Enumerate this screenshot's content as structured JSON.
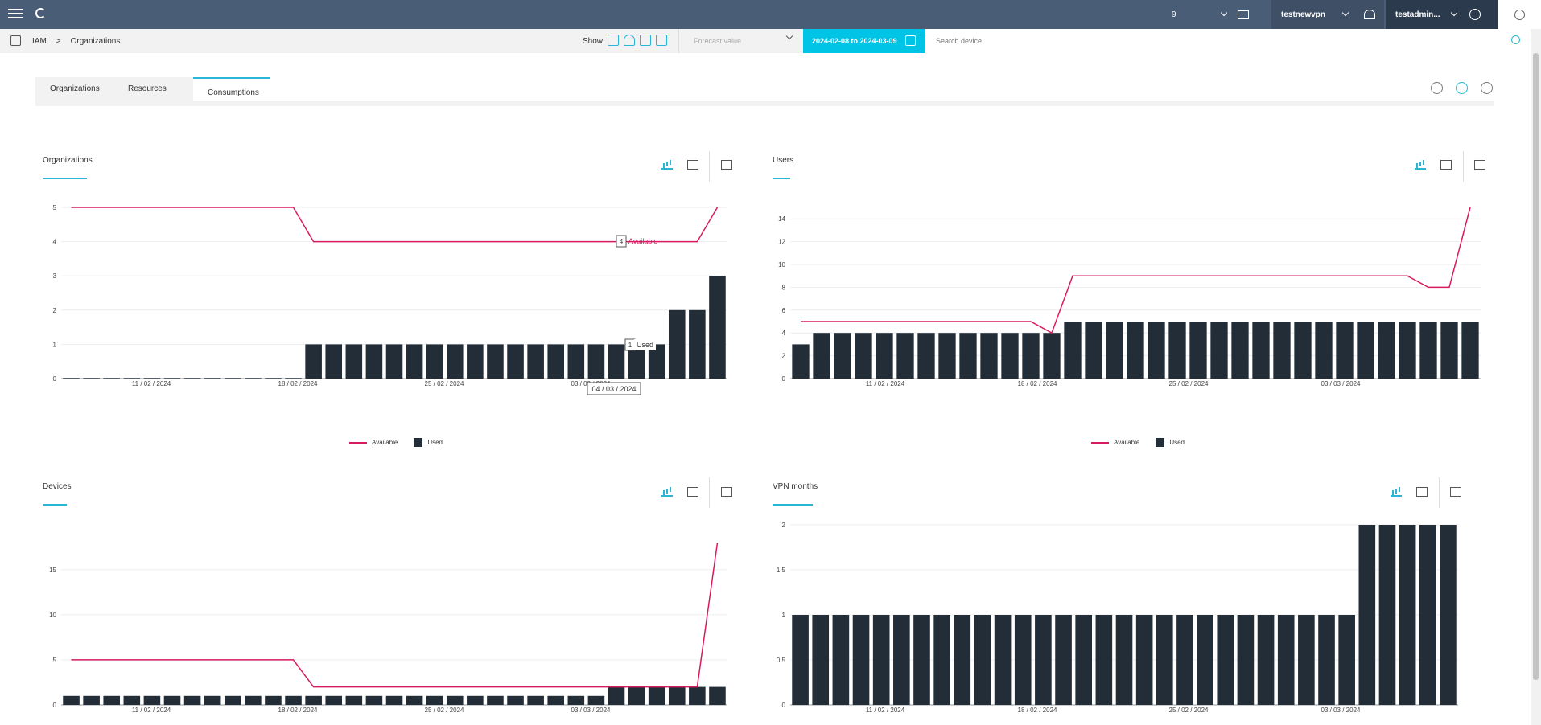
{
  "topbar": {
    "count": "9",
    "vpn": "testnewvpn",
    "user": "testadmin..."
  },
  "breadcrumb": {
    "home": "IAM",
    "sep": ">",
    "current": "Organizations"
  },
  "show_label": "Show:",
  "forecast_placeholder": "Forecast value",
  "date_range": "2024-02-08 to 2024-03-09",
  "search_placeholder": "Search device",
  "tabs": [
    "Organizations",
    "Resources",
    "Consumptions"
  ],
  "panels": {
    "organizations": "Organizations",
    "users": "Users",
    "devices": "Devices",
    "vpn": "VPN months"
  },
  "legend": {
    "available": "Available",
    "used": "Used"
  },
  "tooltip": {
    "date": "04 / 03 / 2024",
    "available_value": "4",
    "available_label": "Available",
    "used_value": "1",
    "used_label": "Used"
  },
  "chart_data": [
    {
      "type": "bar",
      "title": "Organizations",
      "x_ticks": [
        "11 / 02 / 2024",
        "18 / 02 / 2024",
        "25 / 02 / 2024",
        "03 / 03 / 2024"
      ],
      "y_ticks": [
        0,
        1,
        2,
        3,
        4,
        5
      ],
      "ylim": [
        0,
        5
      ],
      "series": [
        {
          "name": "Used",
          "kind": "bar",
          "values": [
            0,
            0,
            0,
            0,
            0,
            0,
            0,
            0,
            0,
            0,
            0,
            0,
            1,
            1,
            1,
            1,
            1,
            1,
            1,
            1,
            1,
            1,
            1,
            1,
            1,
            1,
            1,
            1,
            1,
            1,
            2,
            2,
            3
          ]
        },
        {
          "name": "Available",
          "kind": "line",
          "values": [
            5,
            5,
            5,
            5,
            5,
            5,
            5,
            5,
            5,
            5,
            5,
            5,
            4,
            4,
            4,
            4,
            4,
            4,
            4,
            4,
            4,
            4,
            4,
            4,
            4,
            4,
            4,
            4,
            4,
            4,
            4,
            4,
            5
          ]
        }
      ]
    },
    {
      "type": "bar",
      "title": "Users",
      "x_ticks": [
        "11 / 02 / 2024",
        "18 / 02 / 2024",
        "25 / 02 / 2024",
        "03 / 03 / 2024"
      ],
      "y_ticks": [
        0,
        2,
        4,
        6,
        8,
        10,
        12,
        14
      ],
      "ylim": [
        0,
        15
      ],
      "series": [
        {
          "name": "Used",
          "kind": "bar",
          "values": [
            3,
            4,
            4,
            4,
            4,
            4,
            4,
            4,
            4,
            4,
            4,
            4,
            4,
            5,
            5,
            5,
            5,
            5,
            5,
            5,
            5,
            5,
            5,
            5,
            5,
            5,
            5,
            5,
            5,
            5,
            5,
            5,
            5
          ]
        },
        {
          "name": "Available",
          "kind": "line",
          "values": [
            5,
            5,
            5,
            5,
            5,
            5,
            5,
            5,
            5,
            5,
            5,
            5,
            4,
            9,
            9,
            9,
            9,
            9,
            9,
            9,
            9,
            9,
            9,
            9,
            9,
            9,
            9,
            9,
            9,
            9,
            8,
            8,
            15
          ]
        }
      ]
    },
    {
      "type": "bar",
      "title": "Devices",
      "x_ticks": [
        "11 / 02 / 2024",
        "18 / 02 / 2024",
        "25 / 02 / 2024",
        "03 / 03 / 2024"
      ],
      "y_ticks": [
        0,
        5,
        10,
        15
      ],
      "ylim": [
        0,
        19
      ],
      "series": [
        {
          "name": "Used",
          "kind": "bar",
          "values": [
            1,
            1,
            1,
            1,
            1,
            1,
            1,
            1,
            1,
            1,
            1,
            1,
            1,
            1,
            1,
            1,
            1,
            1,
            1,
            1,
            1,
            1,
            1,
            1,
            1,
            1,
            1,
            2,
            2,
            2,
            2,
            2,
            2
          ]
        },
        {
          "name": "Available",
          "kind": "line",
          "values": [
            5,
            5,
            5,
            5,
            5,
            5,
            5,
            5,
            5,
            5,
            5,
            5,
            2,
            2,
            2,
            2,
            2,
            2,
            2,
            2,
            2,
            2,
            2,
            2,
            2,
            2,
            2,
            2,
            2,
            2,
            2,
            2,
            18
          ]
        }
      ]
    },
    {
      "type": "bar",
      "title": "VPN months",
      "x_ticks": [
        "11 / 02 / 2024",
        "18 / 02 / 2024",
        "25 / 02 / 2024",
        "03 / 03 / 2024"
      ],
      "y_ticks": [
        0,
        0.5,
        1,
        1.5,
        2
      ],
      "ylim": [
        0,
        2
      ],
      "series": [
        {
          "name": "Used",
          "kind": "bar",
          "values": [
            1,
            1,
            1,
            1,
            1,
            1,
            1,
            1,
            1,
            1,
            1,
            1,
            1,
            1,
            1,
            1,
            1,
            1,
            1,
            1,
            1,
            1,
            1,
            1,
            1,
            1,
            1,
            1,
            2,
            2,
            2,
            2,
            2
          ]
        }
      ]
    }
  ]
}
